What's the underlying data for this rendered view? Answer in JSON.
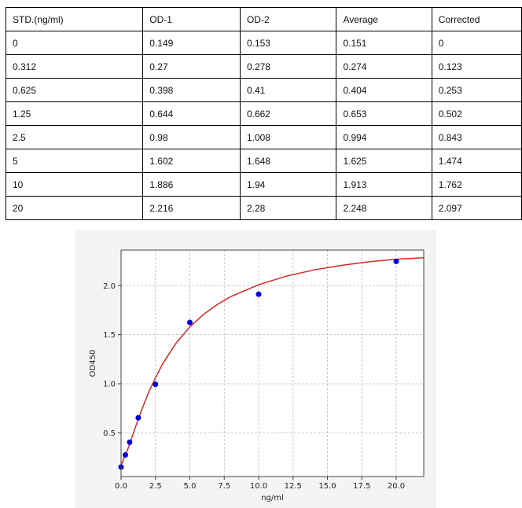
{
  "table": {
    "headers": [
      "STD.(ng/ml)",
      "OD-1",
      "OD-2",
      "Average",
      "Corrected"
    ],
    "rows": [
      [
        "0",
        "0.149",
        "0.153",
        "0.151",
        "0"
      ],
      [
        "0.312",
        "0.27",
        "0.278",
        "0.274",
        "0.123"
      ],
      [
        "0.625",
        "0.398",
        "0.41",
        "0.404",
        "0.253"
      ],
      [
        "1.25",
        "0.644",
        "0.662",
        "0.653",
        "0.502"
      ],
      [
        "2.5",
        "0.98",
        "1.008",
        "0.994",
        "0.843"
      ],
      [
        "5",
        "1.602",
        "1.648",
        "1.625",
        "1.474"
      ],
      [
        "10",
        "1.886",
        "1.94",
        "1.913",
        "1.762"
      ],
      [
        "20",
        "2.216",
        "2.28",
        "2.248",
        "2.097"
      ]
    ]
  },
  "chart_data": {
    "type": "scatter",
    "xlabel": "ng/ml",
    "ylabel": "OD450",
    "xlim": [
      0,
      22
    ],
    "ylim": [
      0.054,
      2.363
    ],
    "xticks": [
      "0.0",
      "2.5",
      "5.0",
      "7.5",
      "10.0",
      "12.5",
      "15.0",
      "17.5",
      "20.0"
    ],
    "yticks": [
      "0.5",
      "1.0",
      "1.5",
      "2.0"
    ],
    "grid": true,
    "points": {
      "color": "#0000dd",
      "x": [
        0,
        0.312,
        0.625,
        1.25,
        2.5,
        5,
        10,
        20
      ],
      "y": [
        0.151,
        0.274,
        0.404,
        0.653,
        0.994,
        1.625,
        1.913,
        2.248
      ]
    },
    "fit_curve": {
      "color": "#d62728",
      "x": [
        0,
        0.5,
        1,
        1.5,
        2,
        2.5,
        3,
        4,
        5,
        6,
        7,
        8,
        10,
        12,
        14,
        16,
        18,
        20,
        22
      ],
      "y": [
        0.17,
        0.337,
        0.54,
        0.735,
        0.911,
        1.06,
        1.198,
        1.415,
        1.58,
        1.708,
        1.809,
        1.891,
        2.01,
        2.097,
        2.16,
        2.207,
        2.244,
        2.27,
        2.285
      ]
    }
  }
}
